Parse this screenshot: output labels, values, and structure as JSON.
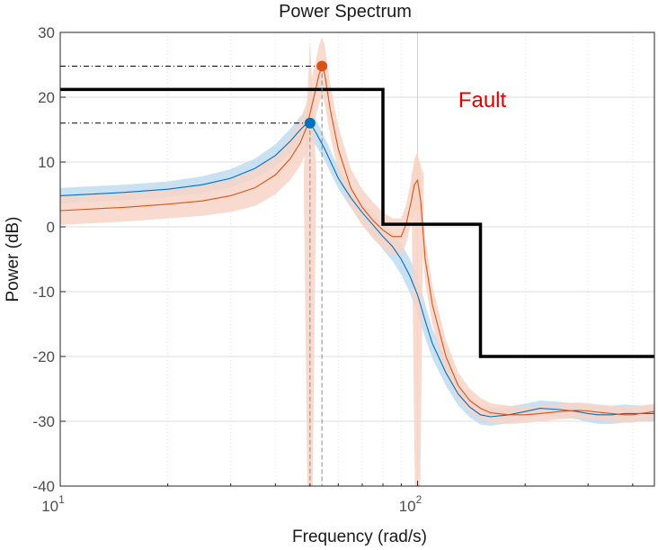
{
  "chart_data": {
    "type": "line",
    "title": "Power Spectrum",
    "xlabel": "Frequency  (rad/s)",
    "ylabel": "Power (dB)",
    "xscale": "log",
    "xlim": [
      10,
      460
    ],
    "ylim": [
      -40,
      30
    ],
    "yticks": [
      -40,
      -30,
      -20,
      -10,
      0,
      10,
      20,
      30
    ],
    "xticks": [
      {
        "value": 10,
        "base": "10",
        "exp": "1"
      },
      {
        "value": 100,
        "base": "10",
        "exp": "2"
      }
    ],
    "grid": true,
    "colors": {
      "blue": "#0072bd",
      "blue_band": "#bfdcf0",
      "orange": "#d95319",
      "orange_band": "#f7d3c6",
      "threshold": "#000000",
      "annotation": "#e00000"
    },
    "series": [
      {
        "x": [
          10,
          15,
          20,
          25,
          30,
          35,
          40,
          44,
          47,
          49,
          50,
          52,
          55,
          60,
          65,
          70,
          75,
          80,
          85,
          90,
          95,
          100,
          105,
          110,
          120,
          130,
          140,
          150,
          160,
          180,
          200,
          220,
          250,
          280,
          300,
          320,
          350,
          380,
          400,
          420,
          460
        ],
        "y": [
          4.8,
          5.3,
          5.8,
          6.5,
          7.5,
          9.0,
          11.0,
          13.2,
          15.0,
          16.0,
          16.0,
          14.5,
          12.0,
          7.5,
          4.5,
          2.2,
          0.3,
          -1.5,
          -3.0,
          -5.0,
          -7.5,
          -10.5,
          -14.5,
          -18.0,
          -22.5,
          -25.8,
          -27.8,
          -29.0,
          -29.3,
          -29.0,
          -28.5,
          -28.0,
          -28.2,
          -28.5,
          -28.8,
          -29.0,
          -29.0,
          -28.8,
          -28.8,
          -28.8,
          -28.8
        ],
        "band": [
          1.2,
          1.2,
          1.2,
          1.3,
          1.4,
          1.5,
          1.7,
          1.9,
          2.0,
          2.2,
          2.2,
          2.0,
          1.8,
          1.6,
          1.5,
          1.6,
          1.8,
          2.0,
          2.2,
          2.4,
          2.6,
          2.8,
          2.6,
          2.3,
          2.0,
          1.8,
          1.6,
          1.5,
          1.4,
          1.3,
          1.2,
          1.2,
          1.2,
          1.2,
          1.3,
          1.4,
          1.4,
          1.4,
          1.3,
          1.2,
          1.2
        ]
      },
      {
        "x": [
          10,
          15,
          20,
          25,
          30,
          35,
          40,
          44,
          47,
          49,
          51,
          53,
          54,
          55,
          57,
          60,
          65,
          70,
          75,
          80,
          85,
          90,
          93,
          96,
          98,
          100,
          102,
          105,
          110,
          120,
          130,
          140,
          150,
          160,
          180,
          200,
          220,
          250,
          280,
          300,
          320,
          350,
          380,
          400,
          420,
          460
        ],
        "y": [
          2.5,
          3.0,
          3.5,
          4.0,
          4.8,
          6.0,
          8.0,
          10.5,
          13.0,
          15.5,
          19.5,
          23.5,
          24.8,
          23.5,
          18.0,
          12.0,
          6.0,
          3.0,
          1.0,
          -0.5,
          -1.5,
          -1.5,
          0.5,
          4.0,
          6.5,
          7.2,
          4.0,
          -5.0,
          -12.0,
          -20.0,
          -24.5,
          -26.8,
          -28.0,
          -28.7,
          -29.0,
          -29.0,
          -28.8,
          -28.5,
          -28.3,
          -28.4,
          -28.6,
          -28.8,
          -29.0,
          -29.0,
          -28.8,
          -28.5
        ],
        "band": [
          2.2,
          2.2,
          2.2,
          2.3,
          2.5,
          2.8,
          3.0,
          3.3,
          3.5,
          3.8,
          4.2,
          4.5,
          4.5,
          4.5,
          4.0,
          3.5,
          3.0,
          2.8,
          2.8,
          2.8,
          2.8,
          2.8,
          3.0,
          3.3,
          4.0,
          4.5,
          4.0,
          3.5,
          3.0,
          2.5,
          2.0,
          1.8,
          1.6,
          1.5,
          1.4,
          1.3,
          1.2,
          1.2,
          1.2,
          1.2,
          1.2,
          1.2,
          1.2,
          1.2,
          1.2,
          1.2
        ]
      }
    ],
    "peaks": [
      {
        "x": 50,
        "y": 16.0,
        "color": "#0072bd"
      },
      {
        "x": 54,
        "y": 24.8,
        "color": "#d95319"
      }
    ],
    "orange_dips": [
      {
        "x": 50,
        "y": -40
      },
      {
        "x": 100,
        "y": -40
      }
    ],
    "threshold": {
      "x": [
        10,
        80,
        80,
        150,
        150,
        460
      ],
      "y": [
        21.2,
        21.2,
        0.4,
        0.4,
        -20,
        -20
      ]
    },
    "annotations": [
      {
        "text": "Fault",
        "x": 130,
        "y": 18.5
      }
    ]
  }
}
